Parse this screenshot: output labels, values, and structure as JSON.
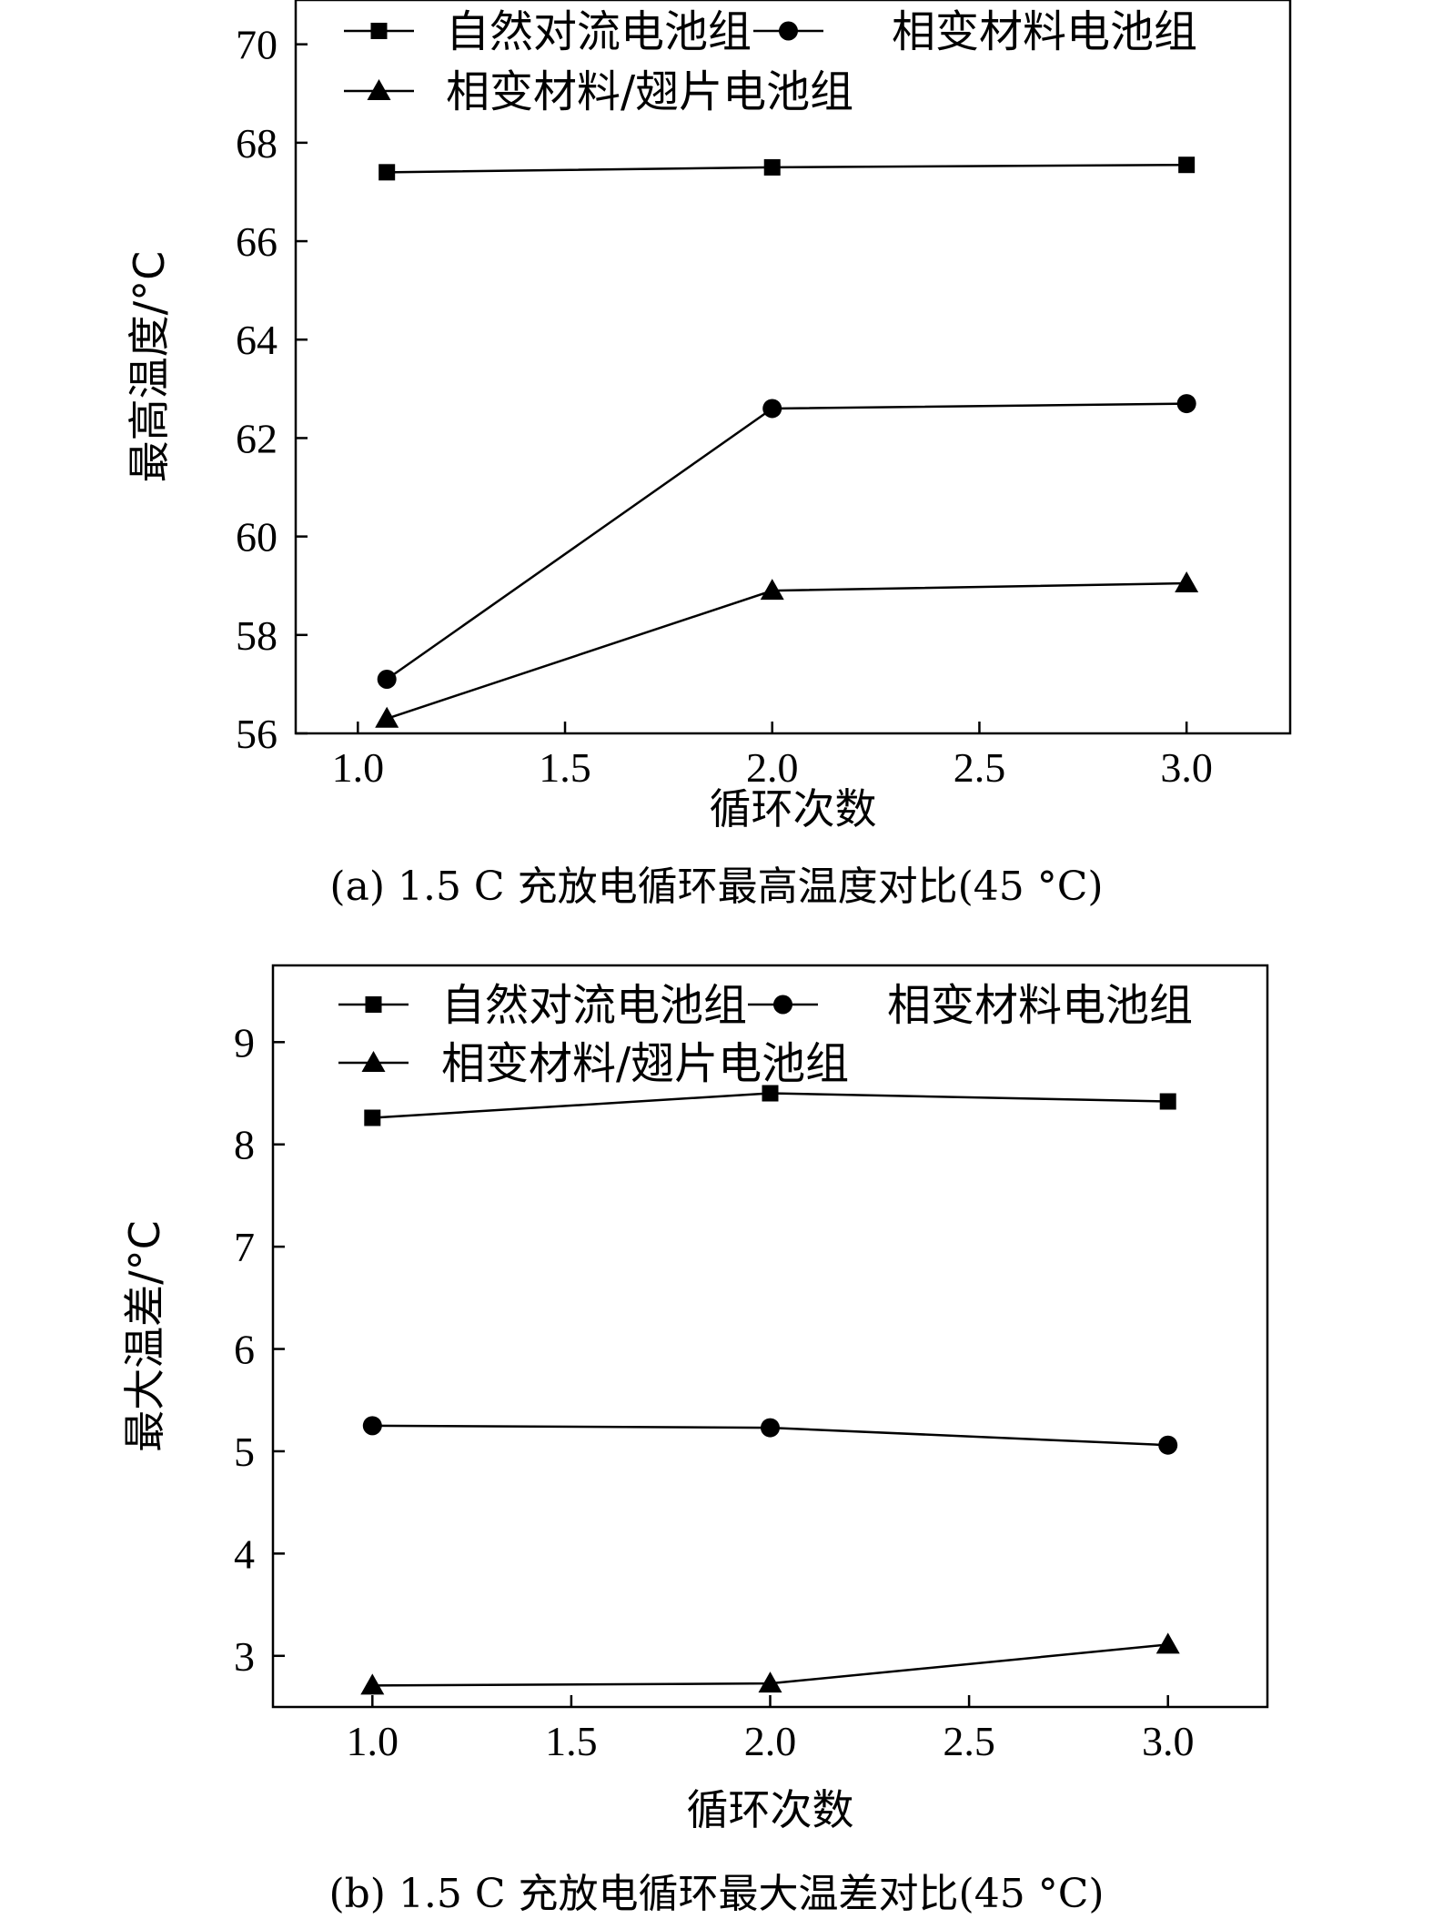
{
  "chart_data": [
    {
      "type": "line",
      "caption": "(a) 1.5 C 充放电循环最高温度对比(45 °C)",
      "xlabel": "循环次数",
      "ylabel": "最高温度/°C",
      "xlim": [
        0.85,
        3.25
      ],
      "ylim": [
        56,
        70.9
      ],
      "xticks": [
        1.0,
        1.5,
        2.0,
        2.5,
        3.0
      ],
      "xtick_labels": [
        "1.0",
        "1.5",
        "2.0",
        "2.5",
        "3.0"
      ],
      "yticks": [
        56,
        58,
        60,
        62,
        64,
        66,
        68,
        70
      ],
      "ytick_labels": [
        "56",
        "58",
        "60",
        "62",
        "64",
        "66",
        "68",
        "70"
      ],
      "legend_position": "top-left",
      "series": [
        {
          "name": "自然对流电池组",
          "marker": "square",
          "x": [
            1.07,
            2.0,
            3.0
          ],
          "y": [
            67.4,
            67.5,
            67.55
          ]
        },
        {
          "name": "相变材料电池组",
          "marker": "circle",
          "x": [
            1.07,
            2.0,
            3.0
          ],
          "y": [
            57.1,
            62.6,
            62.7
          ]
        },
        {
          "name": "相变材料/翅片电池组",
          "marker": "triangle",
          "x": [
            1.07,
            2.0,
            3.0
          ],
          "y": [
            56.3,
            58.9,
            59.05
          ]
        }
      ]
    },
    {
      "type": "line",
      "caption": "(b) 1.5 C 充放电循环最大温差对比(45 °C)",
      "xlabel": "循环次数",
      "ylabel": "最大温差/°C",
      "xlim": [
        0.75,
        3.25
      ],
      "ylim": [
        2.5,
        9.75
      ],
      "xticks": [
        1.0,
        1.5,
        2.0,
        2.5,
        3.0
      ],
      "xtick_labels": [
        "1.0",
        "1.5",
        "2.0",
        "2.5",
        "3.0"
      ],
      "yticks": [
        3,
        4,
        5,
        6,
        7,
        8,
        9
      ],
      "ytick_labels": [
        "3",
        "4",
        "5",
        "6",
        "7",
        "8",
        "9"
      ],
      "legend_position": "top-left",
      "series": [
        {
          "name": "自然对流电池组",
          "marker": "square",
          "x": [
            1.0,
            2.0,
            3.0
          ],
          "y": [
            8.26,
            8.5,
            8.42
          ]
        },
        {
          "name": "相变材料电池组",
          "marker": "circle",
          "x": [
            1.0,
            2.0,
            3.0
          ],
          "y": [
            5.25,
            5.23,
            5.06
          ]
        },
        {
          "name": "相变材料/翅片电池组",
          "marker": "triangle",
          "x": [
            1.0,
            2.0,
            3.0
          ],
          "y": [
            2.71,
            2.73,
            3.11
          ]
        }
      ]
    }
  ]
}
